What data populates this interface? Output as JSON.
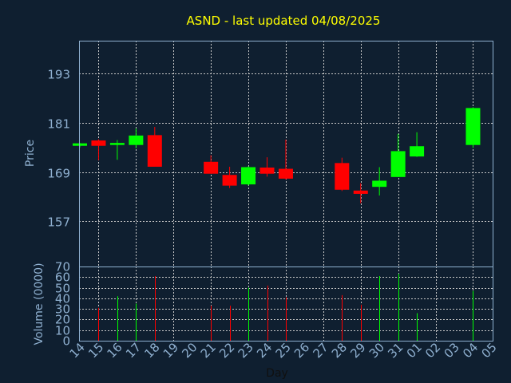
{
  "colors": {
    "background": "#0f1f30",
    "frame": "#8fb0d0",
    "grid": "#c8c8c8",
    "title": "#ffff00",
    "axis_text": "#8fb0d0",
    "xlabel_text": "#101010",
    "up": "#00ff00",
    "down": "#ff0000"
  },
  "chart_data": [
    {
      "type": "candlestick",
      "title": "ASND - last updated 04/08/2025",
      "ylabel": "Price",
      "ylim": [
        146,
        201
      ],
      "yticks": [
        157,
        169,
        181,
        193
      ],
      "grid": true,
      "x_ticks": [
        "14",
        "15",
        "16",
        "17",
        "18",
        "19",
        "20",
        "21",
        "22",
        "23",
        "24",
        "25",
        "26",
        "27",
        "28",
        "29",
        "30",
        "31",
        "01",
        "02",
        "03",
        "04",
        "05"
      ],
      "candles": [
        {
          "day": "14",
          "open": 175.4,
          "close": 176.0,
          "high": 176.1,
          "low": 175.0
        },
        {
          "day": "15",
          "open": 176.7,
          "close": 175.4,
          "high": 177.0,
          "low": 171.9
        },
        {
          "day": "16",
          "open": 175.6,
          "close": 176.1,
          "high": 176.8,
          "low": 172.0
        },
        {
          "day": "17",
          "open": 175.6,
          "close": 177.9,
          "high": 179.6,
          "low": 174.8
        },
        {
          "day": "18",
          "open": 178.0,
          "close": 170.3,
          "high": 180.0,
          "low": 170.3
        },
        {
          "day": "21",
          "open": 171.5,
          "close": 168.6,
          "high": 173.1,
          "low": 168.6
        },
        {
          "day": "22",
          "open": 168.3,
          "close": 165.7,
          "high": 170.3,
          "low": 165.1
        },
        {
          "day": "23",
          "open": 166.0,
          "close": 170.2,
          "high": 170.4,
          "low": 165.7
        },
        {
          "day": "24",
          "open": 170.1,
          "close": 168.6,
          "high": 172.6,
          "low": 167.9
        },
        {
          "day": "25",
          "open": 169.8,
          "close": 167.4,
          "high": 176.9,
          "low": 167.2
        },
        {
          "day": "28",
          "open": 171.2,
          "close": 164.7,
          "high": 172.5,
          "low": 164.4
        },
        {
          "day": "29",
          "open": 164.5,
          "close": 163.7,
          "high": 166.3,
          "low": 161.4
        },
        {
          "day": "30",
          "open": 165.4,
          "close": 166.9,
          "high": 170.2,
          "low": 163.3
        },
        {
          "day": "31",
          "open": 167.8,
          "close": 174.1,
          "high": 178.3,
          "low": 167.8
        },
        {
          "day": "01",
          "open": 172.8,
          "close": 175.3,
          "high": 178.7,
          "low": 172.7
        },
        {
          "day": "04",
          "open": 175.6,
          "close": 184.6,
          "high": 184.8,
          "low": 174.9
        }
      ]
    },
    {
      "type": "bar",
      "ylabel": "Volume (0000)",
      "xlabel": "Day",
      "ylim": [
        0,
        70
      ],
      "yticks": [
        0,
        10,
        20,
        30,
        40,
        50,
        60,
        70
      ],
      "grid": true,
      "x_ticks": [
        "14",
        "15",
        "16",
        "17",
        "18",
        "19",
        "20",
        "21",
        "22",
        "23",
        "24",
        "25",
        "26",
        "27",
        "28",
        "29",
        "30",
        "31",
        "01",
        "02",
        "03",
        "04",
        "05"
      ],
      "bars": [
        {
          "day": "15",
          "value": 31,
          "direction": "down"
        },
        {
          "day": "16",
          "value": 42,
          "direction": "up"
        },
        {
          "day": "17",
          "value": 35,
          "direction": "up"
        },
        {
          "day": "18",
          "value": 61,
          "direction": "down"
        },
        {
          "day": "21",
          "value": 33,
          "direction": "down"
        },
        {
          "day": "22",
          "value": 33,
          "direction": "down"
        },
        {
          "day": "23",
          "value": 50,
          "direction": "up"
        },
        {
          "day": "24",
          "value": 52,
          "direction": "down"
        },
        {
          "day": "25",
          "value": 41,
          "direction": "down"
        },
        {
          "day": "28",
          "value": 43,
          "direction": "down"
        },
        {
          "day": "29",
          "value": 34,
          "direction": "down"
        },
        {
          "day": "30",
          "value": 61,
          "direction": "up"
        },
        {
          "day": "31",
          "value": 63,
          "direction": "up"
        },
        {
          "day": "01",
          "value": 26,
          "direction": "up"
        },
        {
          "day": "04",
          "value": 47,
          "direction": "up"
        }
      ]
    }
  ]
}
